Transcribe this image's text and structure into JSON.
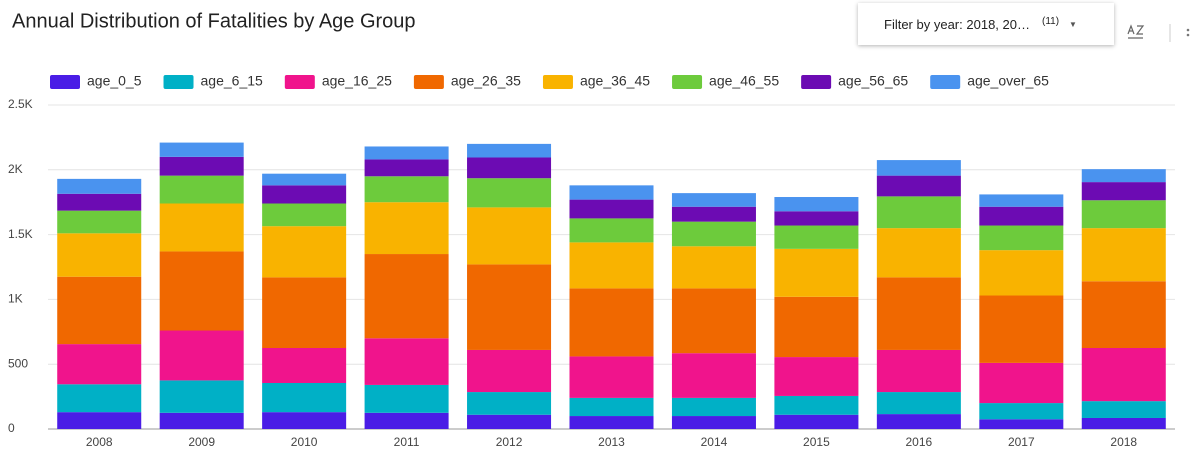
{
  "filter": {
    "label": "Filter by year:",
    "value": "2018, 20…",
    "count": "(11)"
  },
  "chart_data": {
    "type": "stacked_bar",
    "title": "Annual Distribution of Fatalities by Age Group",
    "categories": [
      "2008",
      "2009",
      "2010",
      "2011",
      "2012",
      "2013",
      "2014",
      "2015",
      "2016",
      "2017",
      "2018"
    ],
    "series": [
      {
        "name": "age_0_5",
        "color": "#4a1de6",
        "values": [
          130,
          125,
          130,
          125,
          110,
          100,
          100,
          110,
          115,
          75,
          85
        ]
      },
      {
        "name": "age_6_15",
        "color": "#00b0c6",
        "values": [
          215,
          250,
          225,
          215,
          175,
          140,
          140,
          145,
          170,
          125,
          130
        ]
      },
      {
        "name": "age_16_25",
        "color": "#f0148c",
        "values": [
          310,
          385,
          270,
          360,
          325,
          320,
          345,
          300,
          325,
          310,
          410
        ]
      },
      {
        "name": "age_26_35",
        "color": "#f06800",
        "values": [
          520,
          610,
          545,
          650,
          660,
          525,
          500,
          465,
          560,
          520,
          515
        ]
      },
      {
        "name": "age_36_45",
        "color": "#f9b300",
        "values": [
          335,
          370,
          395,
          400,
          440,
          355,
          325,
          370,
          380,
          350,
          410
        ]
      },
      {
        "name": "age_46_55",
        "color": "#6dcb3c",
        "values": [
          175,
          215,
          175,
          200,
          225,
          185,
          190,
          180,
          245,
          190,
          215
        ]
      },
      {
        "name": "age_56_65",
        "color": "#6c0bb3",
        "values": [
          130,
          145,
          140,
          130,
          160,
          145,
          115,
          110,
          160,
          145,
          140
        ]
      },
      {
        "name": "age_over_65",
        "color": "#4a93ef",
        "values": [
          115,
          110,
          90,
          100,
          105,
          110,
          105,
          110,
          120,
          95,
          100
        ]
      }
    ],
    "ylim": [
      0,
      2500
    ],
    "yticks": [
      0,
      500,
      {
        "value": 1000,
        "label": "1K"
      },
      {
        "value": 1500,
        "label": "1.5K"
      },
      {
        "value": 2000,
        "label": "2K"
      },
      {
        "value": 2500,
        "label": "2.5K"
      }
    ],
    "grid": true,
    "legend": "top"
  }
}
